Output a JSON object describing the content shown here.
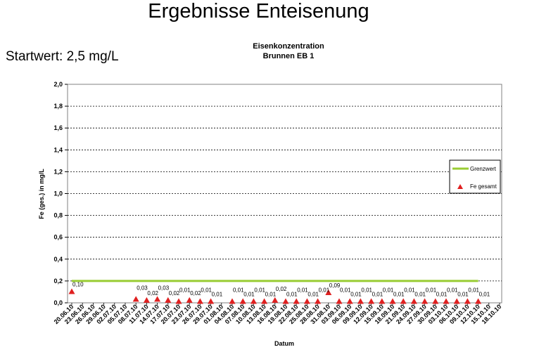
{
  "page": {
    "title": "Ergebnisse Enteisenung",
    "start_value": "Startwert: 2,5 mg/L"
  },
  "chart_data": {
    "type": "scatter",
    "title_lines": [
      "Eisenkonzentration",
      "Brunnen EB 1"
    ],
    "xlabel": "Datum",
    "ylabel": "Fe (ges.) in mg/L",
    "ylim": [
      0,
      2.0
    ],
    "yticks": [
      "0,0",
      "0,2",
      "0,4",
      "0,6",
      "0,8",
      "1,0",
      "1,2",
      "1,4",
      "1,6",
      "1,8",
      "2,0"
    ],
    "grid": true,
    "legend_position": "right",
    "categories": [
      "20.06.10",
      "23.06.10",
      "26.06.10",
      "29.06.10",
      "02.07.10",
      "05.07.10",
      "08.07.10",
      "11.07.10",
      "14.07.10",
      "17.07.10",
      "20.07.10",
      "23.07.10",
      "26.07.10",
      "29.07.10",
      "01.08.10",
      "04.08.10",
      "07.08.10",
      "10.08.10",
      "13.08.10",
      "16.08.10",
      "19.08.10",
      "22.08.10",
      "25.08.10",
      "28.08.10",
      "31.08.10",
      "03.09.10",
      "06.09.10",
      "09.09.10",
      "12.09.10",
      "15.09.10",
      "18.09.10",
      "21.09.10",
      "24.09.10",
      "27.09.10",
      "30.09.10",
      "03.10.10",
      "06.10.10",
      "09.10.10",
      "12.10.10",
      "15.10.10",
      "18.10.10"
    ],
    "series": [
      {
        "name": "Grenzwert",
        "kind": "line",
        "color": "#99cc33",
        "x_start": "20.06.10",
        "x_end": "12.10.10",
        "value": 0.2
      },
      {
        "name": "Fe gesamt",
        "kind": "scatter",
        "color": "#e02020",
        "points": [
          {
            "x": "20.06.10",
            "y": 0.1,
            "label": "0,10"
          },
          {
            "x": "08.07.10",
            "y": 0.03,
            "label": "0,03"
          },
          {
            "x": "11.07.10",
            "y": 0.02,
            "label": "0,02"
          },
          {
            "x": "14.07.10",
            "y": 0.03,
            "label": "0,03"
          },
          {
            "x": "17.07.10",
            "y": 0.02,
            "label": "0,02"
          },
          {
            "x": "20.07.10",
            "y": 0.01,
            "label": "0,01"
          },
          {
            "x": "23.07.10",
            "y": 0.02,
            "label": "0,02"
          },
          {
            "x": "26.07.10",
            "y": 0.01,
            "label": "0,01"
          },
          {
            "x": "29.07.10",
            "y": 0.01,
            "label": "0,01"
          },
          {
            "x": "04.08.10",
            "y": 0.01,
            "label": "0,01"
          },
          {
            "x": "07.08.10",
            "y": 0.01,
            "label": "0,01"
          },
          {
            "x": "10.08.10",
            "y": 0.01,
            "label": "0,01"
          },
          {
            "x": "13.08.10",
            "y": 0.01,
            "label": "0,01"
          },
          {
            "x": "16.08.10",
            "y": 0.02,
            "label": "0,02"
          },
          {
            "x": "19.08.10",
            "y": 0.01,
            "label": "0,01"
          },
          {
            "x": "22.08.10",
            "y": 0.01,
            "label": "0,01"
          },
          {
            "x": "25.08.10",
            "y": 0.01,
            "label": "0,01"
          },
          {
            "x": "28.08.10",
            "y": 0.01,
            "label": "0,01"
          },
          {
            "x": "31.08.10",
            "y": 0.09,
            "label": "0,09"
          },
          {
            "x": "03.09.10",
            "y": 0.01,
            "label": "0,01"
          },
          {
            "x": "06.09.10",
            "y": 0.01,
            "label": "0,01"
          },
          {
            "x": "09.09.10",
            "y": 0.01,
            "label": "0,01"
          },
          {
            "x": "12.09.10",
            "y": 0.01,
            "label": "0,01"
          },
          {
            "x": "15.09.10",
            "y": 0.01,
            "label": "0,01"
          },
          {
            "x": "18.09.10",
            "y": 0.01,
            "label": "0,01"
          },
          {
            "x": "21.09.10",
            "y": 0.01,
            "label": "0,01"
          },
          {
            "x": "24.09.10",
            "y": 0.01,
            "label": "0,01"
          },
          {
            "x": "27.09.10",
            "y": 0.01,
            "label": "0,01"
          },
          {
            "x": "30.09.10",
            "y": 0.01,
            "label": "0,01"
          },
          {
            "x": "03.10.10",
            "y": 0.01,
            "label": "0,01"
          },
          {
            "x": "06.10.10",
            "y": 0.01,
            "label": "0,01"
          },
          {
            "x": "09.10.10",
            "y": 0.01,
            "label": "0,01"
          },
          {
            "x": "12.10.10",
            "y": 0.01,
            "label": "0,01"
          }
        ]
      }
    ],
    "legend": [
      {
        "label": "Grenzwert",
        "marker": "line",
        "color": "#99cc33"
      },
      {
        "label": "Fe gesamt",
        "marker": "triangle",
        "color": "#e02020"
      }
    ]
  }
}
